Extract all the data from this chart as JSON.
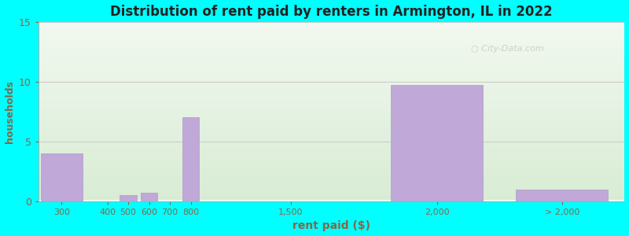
{
  "title": "Distribution of rent paid by renters in Armington, IL in 2022",
  "xlabel": "rent paid ($)",
  "ylabel": "households",
  "background_outer": "#00FFFF",
  "bar_color": "#c0a8d8",
  "bar_edge_color": "#b09ac8",
  "categories": [
    "300",
    "400",
    "500",
    "600",
    "700",
    "800",
    "1,500",
    "2,000",
    "> 2,000"
  ],
  "values": [
    4,
    0,
    0.5,
    0.7,
    0,
    7,
    0,
    9.7,
    1
  ],
  "ylim": [
    0,
    15
  ],
  "yticks": [
    0,
    5,
    10,
    15
  ],
  "grid_color": "#cccccc",
  "title_color": "#222222",
  "label_color": "#886644",
  "tick_color": "#886644",
  "watermark": "City-Data.com",
  "watermark_color": "#c8c8c8",
  "positions": [
    0.5,
    1.6,
    2.1,
    2.6,
    3.1,
    3.6,
    6.0,
    9.5,
    12.5
  ],
  "widths": [
    1.0,
    0.4,
    0.4,
    0.4,
    0.4,
    0.4,
    1.0,
    2.2,
    2.2
  ],
  "xlim": [
    -0.05,
    14.0
  ]
}
